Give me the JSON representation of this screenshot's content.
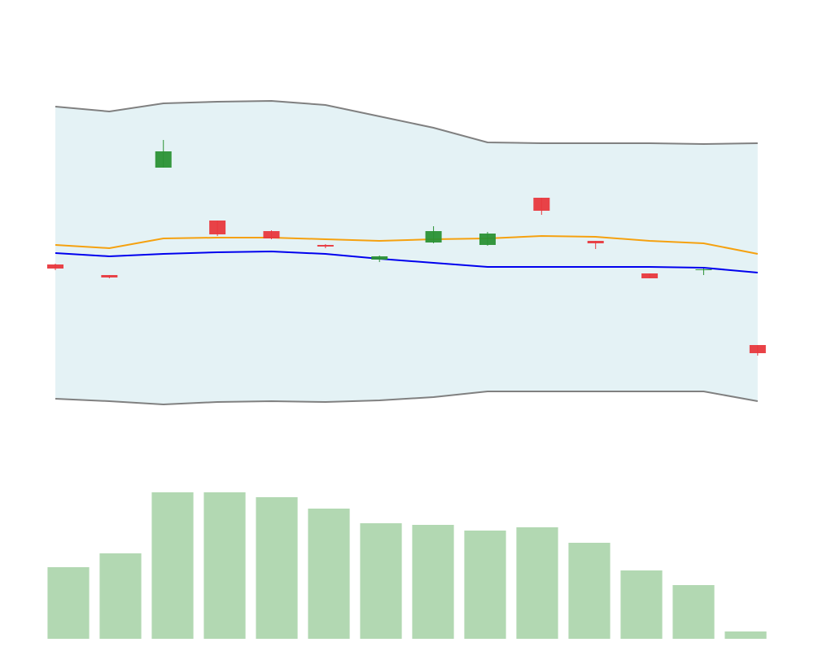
{
  "chart_data": [
    {
      "type": "candlestick",
      "categories": [
        null,
        null,
        null,
        null,
        null,
        null,
        null,
        null,
        null,
        null,
        null,
        null,
        null,
        null
      ],
      "open": [
        19.5,
        18.2,
        31.4,
        24.9,
        23.6,
        21.9,
        20.1,
        22.2,
        21.9,
        27.7,
        22.4,
        18.4,
        18.8,
        9.6
      ],
      "high": [
        19.6,
        18.2,
        34.8,
        24.9,
        23.7,
        22.0,
        20.6,
        24.2,
        23.5,
        27.7,
        22.4,
        18.4,
        19.0,
        9.6
      ],
      "low": [
        18.8,
        17.8,
        31.4,
        23.0,
        22.6,
        21.5,
        19.8,
        22.1,
        21.8,
        25.6,
        21.4,
        17.8,
        18.2,
        8.3
      ],
      "close": [
        19.0,
        17.9,
        33.4,
        23.2,
        22.7,
        21.7,
        20.5,
        23.6,
        23.3,
        26.1,
        22.1,
        17.8,
        18.9,
        8.6
      ],
      "up_color": "#2a9134",
      "down_color": "#e8383d",
      "band": {
        "upper": [
          38.9,
          38.3,
          39.3,
          39.5,
          39.6,
          39.1,
          37.7,
          36.3,
          34.5,
          34.4,
          34.4,
          34.4,
          34.3,
          34.4
        ],
        "lower": [
          3.0,
          2.7,
          2.3,
          2.6,
          2.7,
          2.6,
          2.8,
          3.2,
          3.9,
          3.9,
          3.9,
          3.9,
          3.9,
          2.7
        ],
        "color": "#808080",
        "fill": "#e4f2f5"
      },
      "series": [
        {
          "color": "#0000ee",
          "values": [
            20.9,
            20.5,
            20.8,
            21.0,
            21.1,
            20.8,
            20.2,
            19.7,
            19.2,
            19.2,
            19.2,
            19.2,
            19.1,
            18.5
          ]
        },
        {
          "color": "#f5a10f",
          "values": [
            21.9,
            21.5,
            22.7,
            22.8,
            22.8,
            22.6,
            22.4,
            22.6,
            22.7,
            23.0,
            22.9,
            22.4,
            22.1,
            20.8
          ]
        }
      ],
      "ylim": [
        0,
        46
      ]
    },
    {
      "type": "bar",
      "categories": [
        null,
        null,
        null,
        null,
        null,
        null,
        null,
        null,
        null,
        null,
        null,
        null,
        null,
        null
      ],
      "values": [
        88,
        105,
        180,
        180,
        174,
        160,
        142,
        140,
        133,
        137,
        118,
        84,
        66,
        9
      ],
      "color": "#b2d8b2",
      "ylim": [
        0,
        180
      ]
    }
  ]
}
